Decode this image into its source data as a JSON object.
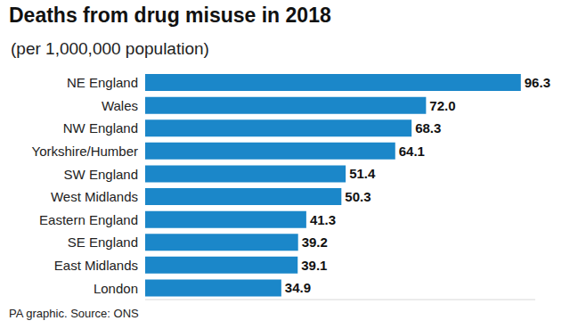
{
  "chart_data": {
    "type": "bar",
    "title": "Deaths from drug misuse in 2018",
    "subtitle": "(per 1,000,000 population)",
    "source": "PA graphic. Source: ONS",
    "categories": [
      "NE England",
      "Wales",
      "NW England",
      "Yorkshire/Humber",
      "SW England",
      "West Midlands",
      "Eastern England",
      "SE England",
      "East Midlands",
      "London"
    ],
    "values": [
      96.3,
      72.0,
      68.3,
      64.1,
      51.4,
      50.3,
      41.3,
      39.2,
      39.1,
      34.9
    ],
    "value_labels": [
      "96.3",
      "72.0",
      "68.3",
      "64.1",
      "51.4",
      "50.3",
      "41.3",
      "39.2",
      "39.1",
      "34.9"
    ],
    "color": "#1b87c9",
    "orientation": "horizontal",
    "data_labels": true,
    "tick_labels": "y",
    "xlim": [
      0,
      100
    ],
    "xticks": [],
    "grid": false
  }
}
